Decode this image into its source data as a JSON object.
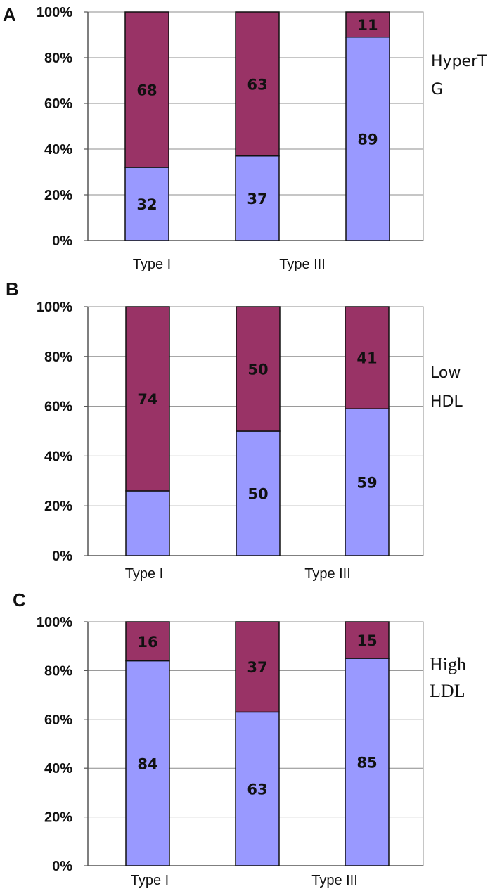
{
  "chart_data": [
    {
      "type": "bar",
      "stacked": true,
      "panel_label": "A",
      "legend_lines": [
        "HyperT",
        "G"
      ],
      "categories": [
        "Type I",
        "",
        "Type III"
      ],
      "x_tick_labels": [
        "Type I",
        "Type III"
      ],
      "y_ticks": [
        "0%",
        "20%",
        "40%",
        "60%",
        "80%",
        "100%"
      ],
      "ylim": [
        0,
        100
      ],
      "grid": true,
      "series": [
        {
          "values": [
            32,
            37,
            89
          ],
          "labels": [
            "32",
            "37",
            "89"
          ],
          "color": "#9999ff"
        },
        {
          "values": [
            68,
            63,
            11
          ],
          "labels": [
            "68",
            "63",
            "11"
          ],
          "color": "#993366"
        }
      ]
    },
    {
      "type": "bar",
      "stacked": true,
      "panel_label": "B",
      "legend_lines": [
        "Low",
        "HDL"
      ],
      "categories": [
        "Type I",
        "",
        "Type III"
      ],
      "x_tick_labels": [
        "Type I",
        "Type III"
      ],
      "y_ticks": [
        "0%",
        "20%",
        "40%",
        "60%",
        "80%",
        "100%"
      ],
      "ylim": [
        0,
        100
      ],
      "grid": true,
      "series": [
        {
          "values": [
            26,
            50,
            59
          ],
          "labels": [
            "",
            "50",
            "59"
          ],
          "color": "#9999ff"
        },
        {
          "values": [
            74,
            50,
            41
          ],
          "labels": [
            "74",
            "50",
            "41"
          ],
          "color": "#993366"
        }
      ]
    },
    {
      "type": "bar",
      "stacked": true,
      "panel_label": "C",
      "legend_lines": [
        "High",
        "LDL"
      ],
      "categories": [
        "Type I",
        "",
        "Type III"
      ],
      "x_tick_labels": [
        "Type I",
        "Type III"
      ],
      "y_ticks": [
        "0%",
        "20%",
        "40%",
        "60%",
        "80%",
        "100%"
      ],
      "ylim": [
        0,
        100
      ],
      "grid": true,
      "series": [
        {
          "values": [
            84,
            63,
            85
          ],
          "labels": [
            "84",
            "63",
            "85"
          ],
          "color": "#9999ff"
        },
        {
          "values": [
            16,
            37,
            15
          ],
          "labels": [
            "16",
            "37",
            "15"
          ],
          "color": "#993366"
        }
      ]
    }
  ]
}
